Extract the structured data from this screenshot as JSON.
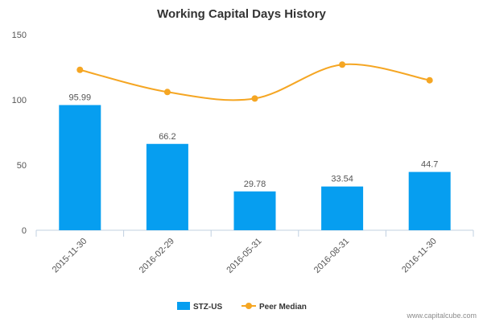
{
  "chart_data": {
    "type": "bar",
    "title": "Working Capital Days History",
    "categories": [
      "2015-11-30",
      "2016-02-29",
      "2016-05-31",
      "2016-08-31",
      "2016-11-30"
    ],
    "ylim": [
      0,
      150
    ],
    "yticks": [
      0,
      50,
      100,
      150
    ],
    "grid": false,
    "legend_position": "bottom",
    "series": [
      {
        "name": "STZ-US",
        "kind": "bar",
        "color": "#069ef0",
        "values": [
          95.99,
          66.2,
          29.78,
          33.54,
          44.7
        ],
        "labels": [
          "95.99",
          "66.2",
          "29.78",
          "33.54",
          "44.7"
        ]
      },
      {
        "name": "Peer Median",
        "kind": "line",
        "color": "#f5a623",
        "values": [
          123,
          106,
          101,
          127,
          115
        ]
      }
    ]
  },
  "credit": "www.capitalcube.com"
}
